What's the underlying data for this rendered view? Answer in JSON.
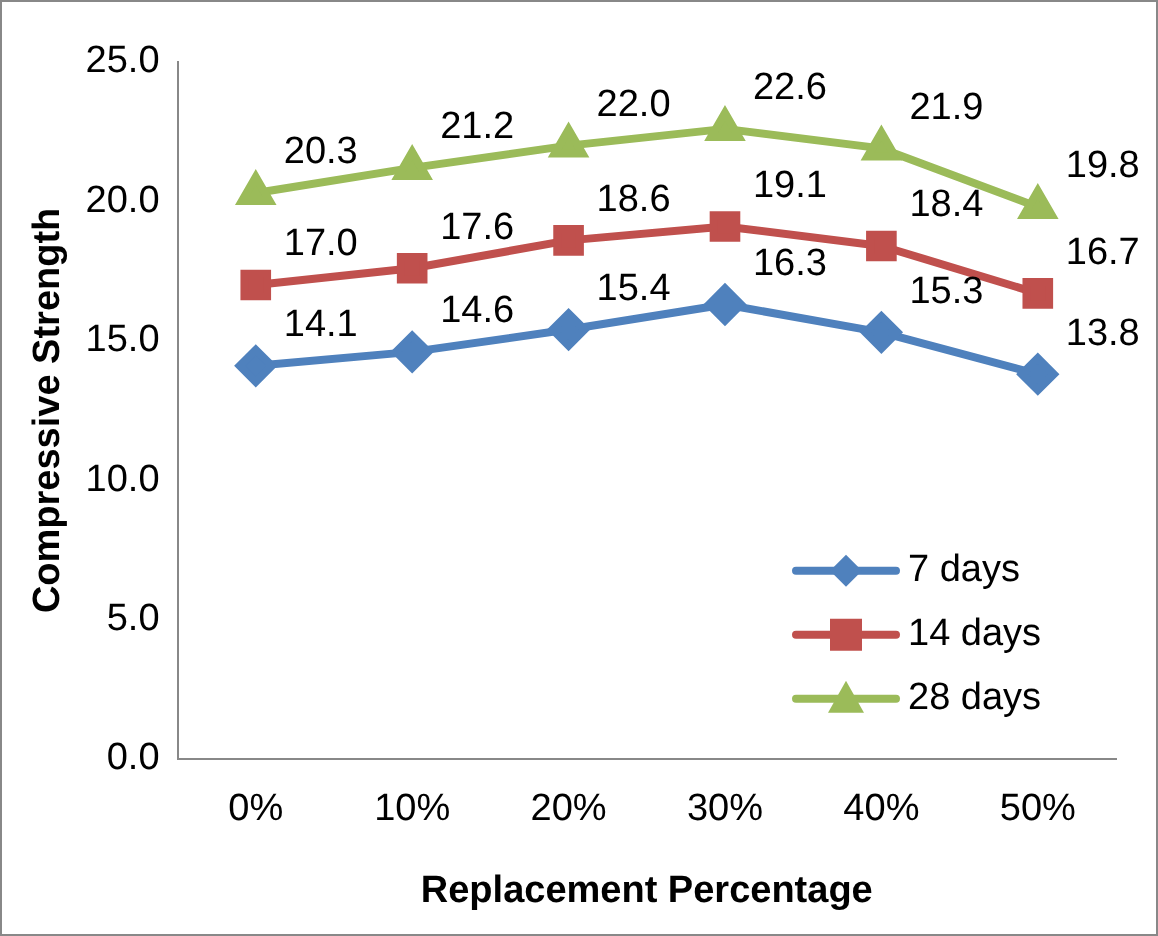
{
  "chart_data": {
    "type": "line",
    "xlabel": "Replacement Percentage",
    "ylabel": "Compressive Strength",
    "categories": [
      "0%",
      "10%",
      "20%",
      "30%",
      "40%",
      "50%"
    ],
    "series": [
      {
        "name": "7 days",
        "color": "#4f81bd",
        "marker": "diamond",
        "values": [
          14.1,
          14.6,
          15.4,
          16.3,
          15.3,
          13.8
        ],
        "value_labels": [
          "14.1",
          "14.6",
          "15.4",
          "16.3",
          "15.3",
          "13.8"
        ]
      },
      {
        "name": "14 days",
        "color": "#c0504d",
        "marker": "square",
        "values": [
          17.0,
          17.6,
          18.6,
          19.1,
          18.4,
          16.7
        ],
        "value_labels": [
          "17.0",
          "17.6",
          "18.6",
          "19.1",
          "18.4",
          "16.7"
        ]
      },
      {
        "name": "28 days",
        "color": "#9bbb59",
        "marker": "triangle",
        "values": [
          20.3,
          21.2,
          22.0,
          22.6,
          21.9,
          19.8
        ],
        "value_labels": [
          "20.3",
          "21.2",
          "22.0",
          "22.6",
          "21.9",
          "19.8"
        ]
      }
    ],
    "ylim": [
      0,
      25
    ],
    "yticks": [
      {
        "value": 0,
        "label": "0.0"
      },
      {
        "value": 5,
        "label": "5.0"
      },
      {
        "value": 10,
        "label": "10.0"
      },
      {
        "value": 15,
        "label": "15.0"
      },
      {
        "value": 20,
        "label": "20.0"
      },
      {
        "value": 25,
        "label": "25.0"
      }
    ],
    "legend": "bottom right",
    "grid": false
  }
}
